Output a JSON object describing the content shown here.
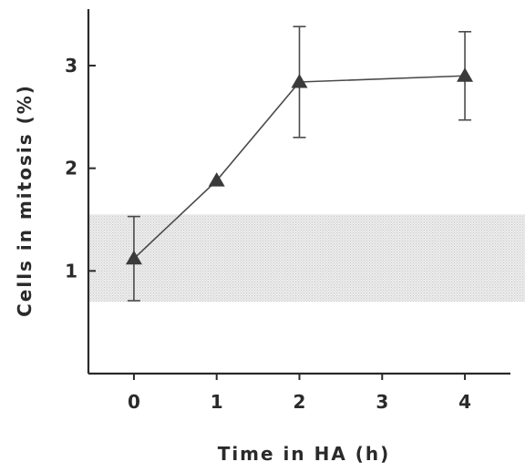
{
  "chart_data": {
    "type": "line",
    "xlabel": "Time in HA (h)",
    "ylabel": "Cells in mitosis (%)",
    "xlim": [
      -0.55,
      4.55
    ],
    "ylim": [
      0,
      3.55
    ],
    "x_ticks": [
      "0",
      "1",
      "2",
      "3",
      "4"
    ],
    "y_ticks": [
      "1",
      "2",
      "3"
    ],
    "series": [
      {
        "marker": "triangle",
        "x": [
          0,
          1,
          2,
          4
        ],
        "y": [
          1.12,
          1.88,
          2.84,
          2.9
        ],
        "error": [
          0.41,
          null,
          0.54,
          0.43
        ]
      }
    ],
    "band": {
      "y_from": 0.7,
      "y_to": 1.55
    },
    "grid": false,
    "colors": {
      "line": "#4a4a4a",
      "marker": "#3a3a3a",
      "band": "#e2e2e2",
      "axis": "#2a2a2a"
    }
  }
}
